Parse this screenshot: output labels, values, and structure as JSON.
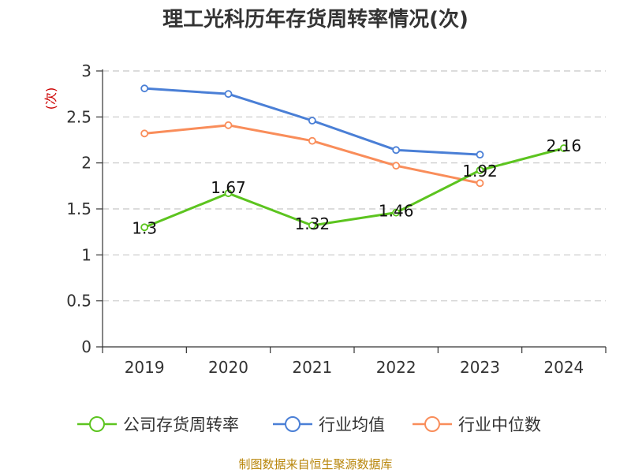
{
  "chart_data": {
    "type": "line",
    "title": "理工光科历年存货周转率情况(次)",
    "ylabel": "(次)",
    "xlabel": "",
    "categories": [
      "2019",
      "2020",
      "2021",
      "2022",
      "2023",
      "2024"
    ],
    "ylim": [
      0,
      3
    ],
    "yticks": [
      "0",
      "0.5",
      "1",
      "1.5",
      "2",
      "2.5",
      "3"
    ],
    "grid": true,
    "legend_position": "bottom",
    "series": [
      {
        "name": "公司存货周转率",
        "color": "#5cc41f",
        "values": [
          1.3,
          1.67,
          1.32,
          1.46,
          1.92,
          2.16
        ],
        "labels": [
          "1.3",
          "1.67",
          "1.32",
          "1.46",
          "1.92",
          "2.16"
        ]
      },
      {
        "name": "行业均值",
        "color": "#4a7fd6",
        "values": [
          2.81,
          2.75,
          2.46,
          2.14,
          2.09,
          null
        ]
      },
      {
        "name": "行业中位数",
        "color": "#f98d5a",
        "values": [
          2.32,
          2.41,
          2.24,
          1.97,
          1.78,
          null
        ]
      }
    ],
    "source": "制图数据来自恒生聚源数据库"
  }
}
